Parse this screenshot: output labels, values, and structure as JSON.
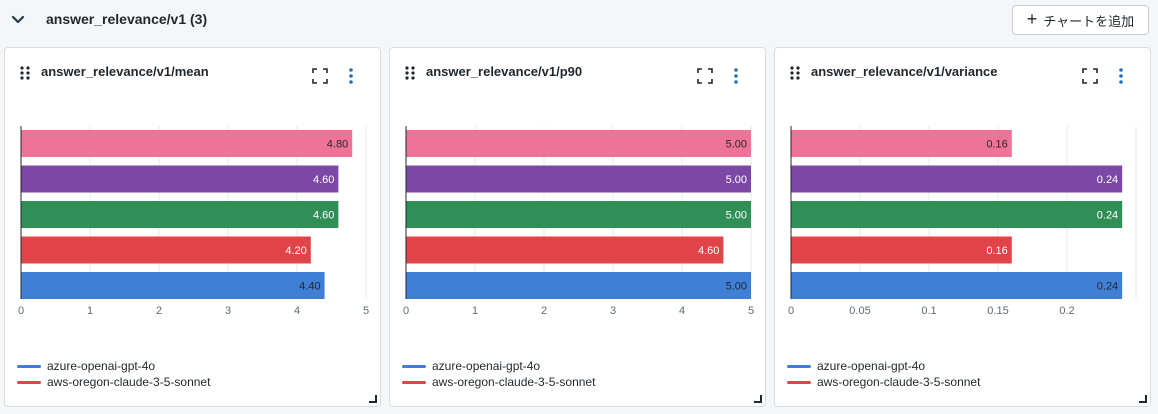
{
  "section": {
    "title": "answer_relevance/v1 (3)",
    "add_chart_label": "チャートを追加"
  },
  "colors": {
    "pink": "#ef7398",
    "purple": "#7b48a6",
    "green": "#2f8f56",
    "red": "#e04448",
    "blue": "#3f7fd6"
  },
  "legend": [
    {
      "name": "azure-openai-gpt-4o",
      "color": "#3f7fd6"
    },
    {
      "name": "aws-oregon-claude-3-5-sonnet",
      "color": "#e04448"
    }
  ],
  "chart_data": [
    {
      "type": "bar",
      "orientation": "horizontal",
      "title": "answer_relevance/v1/mean",
      "xlim": [
        0,
        5
      ],
      "xticks": [
        0,
        1,
        2,
        3,
        4,
        5
      ],
      "tick_labels": [
        "0",
        "1",
        "2",
        "3",
        "4",
        "5"
      ],
      "bars": [
        {
          "value": 4.8,
          "label": "4.80",
          "color": "#ef7398",
          "label_color": "#1f272d"
        },
        {
          "value": 4.6,
          "label": "4.60",
          "color": "#7b48a6",
          "label_color": "#ffffff"
        },
        {
          "value": 4.6,
          "label": "4.60",
          "color": "#2f8f56",
          "label_color": "#ffffff"
        },
        {
          "value": 4.2,
          "label": "4.20",
          "color": "#e04448",
          "label_color": "#ffffff"
        },
        {
          "value": 4.4,
          "label": "4.40",
          "color": "#3f7fd6",
          "label_color": "#1f272d"
        }
      ],
      "grid": true
    },
    {
      "type": "bar",
      "orientation": "horizontal",
      "title": "answer_relevance/v1/p90",
      "xlim": [
        0,
        5
      ],
      "xticks": [
        0,
        1,
        2,
        3,
        4,
        5
      ],
      "tick_labels": [
        "0",
        "1",
        "2",
        "3",
        "4",
        "5"
      ],
      "bars": [
        {
          "value": 5.0,
          "label": "5.00",
          "color": "#ef7398",
          "label_color": "#1f272d"
        },
        {
          "value": 5.0,
          "label": "5.00",
          "color": "#7b48a6",
          "label_color": "#ffffff"
        },
        {
          "value": 5.0,
          "label": "5.00",
          "color": "#2f8f56",
          "label_color": "#ffffff"
        },
        {
          "value": 4.6,
          "label": "4.60",
          "color": "#e04448",
          "label_color": "#ffffff"
        },
        {
          "value": 5.0,
          "label": "5.00",
          "color": "#3f7fd6",
          "label_color": "#1f272d"
        }
      ],
      "grid": true
    },
    {
      "type": "bar",
      "orientation": "horizontal",
      "title": "answer_relevance/v1/variance",
      "xlim": [
        0,
        0.25
      ],
      "xticks": [
        0,
        0.05,
        0.1,
        0.15,
        0.2
      ],
      "tick_labels": [
        "0",
        "0.05",
        "0.1",
        "0.15",
        "0.2"
      ],
      "bars": [
        {
          "value": 0.16,
          "label": "0.16",
          "color": "#ef7398",
          "label_color": "#1f272d"
        },
        {
          "value": 0.24,
          "label": "0.24",
          "color": "#7b48a6",
          "label_color": "#ffffff"
        },
        {
          "value": 0.24,
          "label": "0.24",
          "color": "#2f8f56",
          "label_color": "#ffffff"
        },
        {
          "value": 0.16,
          "label": "0.16",
          "color": "#e04448",
          "label_color": "#ffffff"
        },
        {
          "value": 0.24,
          "label": "0.24",
          "color": "#3f7fd6",
          "label_color": "#1f272d"
        }
      ],
      "grid": true
    }
  ]
}
